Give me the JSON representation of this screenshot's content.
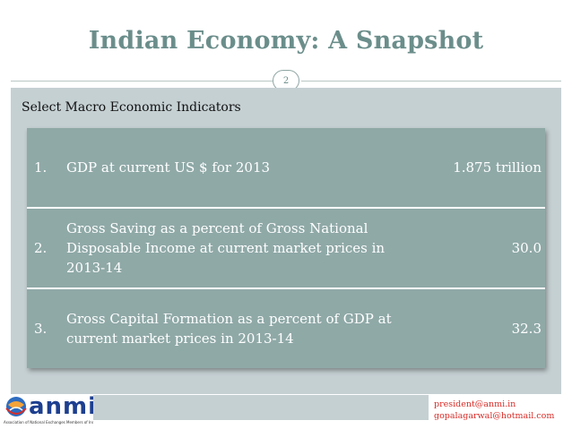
{
  "slide": {
    "title": "Indian Economy: A Snapshot",
    "page_number": "2",
    "subtitle": "Select Macro Economic Indicators"
  },
  "table": {
    "rows": [
      {
        "number": "1.",
        "description": "GDP at current US $ for 2013",
        "value": "1.875 trillion"
      },
      {
        "number": "2.",
        "description": "Gross Saving as a percent of Gross National Disposable Income at current market prices in 2013-14",
        "value": "30.0"
      },
      {
        "number": "3.",
        "description": "Gross Capital Formation as a percent of GDP at current market prices in 2013-14",
        "value": "32.3"
      }
    ]
  },
  "footer": {
    "logo_text": "anmi",
    "logo_tagline": "Association of National Exchanges Members of India",
    "contact_lines": [
      "president@anmi.in",
      "gopalagarwal@hotmail.com"
    ]
  },
  "colors": {
    "title": "#6b8e8b",
    "panel": "#c5d0d3",
    "table_row": "#8fa9a7",
    "contact": "#d72d28",
    "logo": "#1d3f8f"
  }
}
